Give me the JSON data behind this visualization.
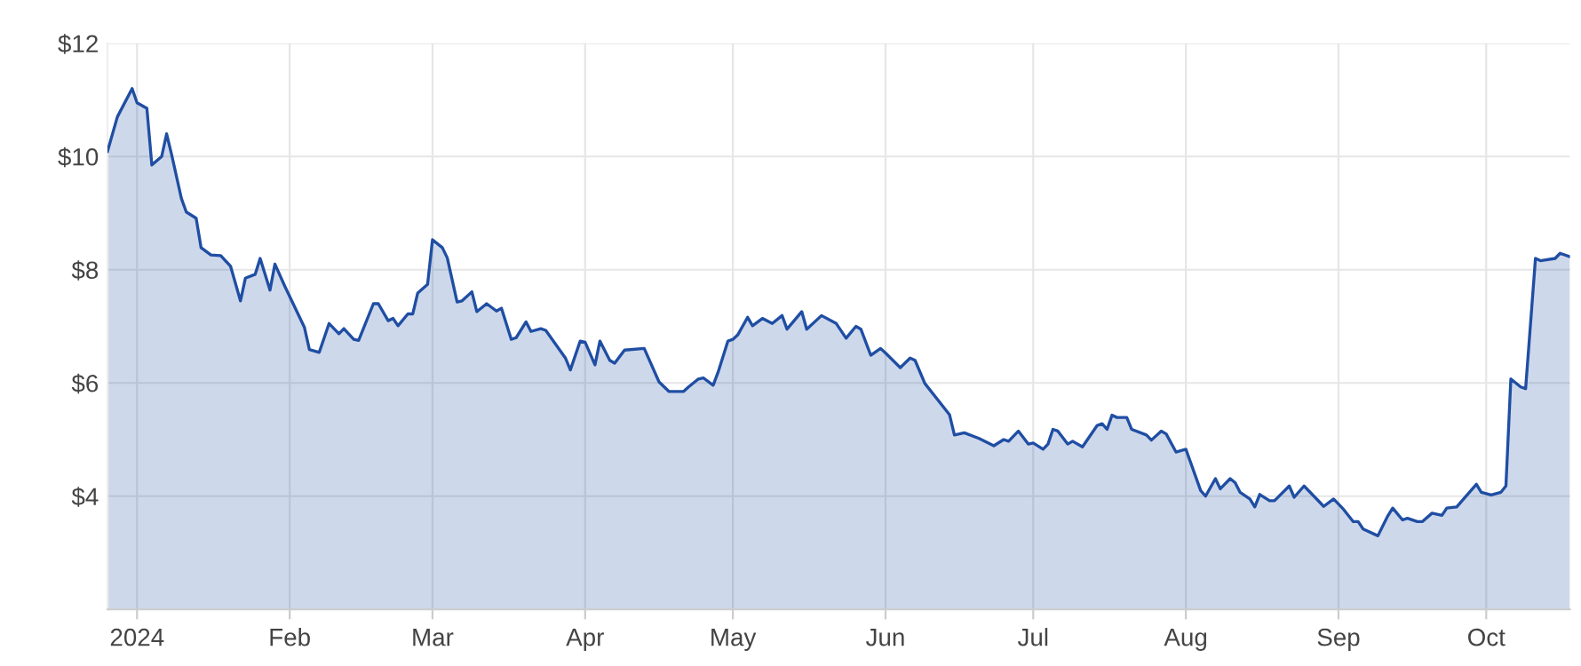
{
  "chart_data": {
    "type": "area",
    "x": [
      "2023-12-26",
      "2023-12-28",
      "2023-12-31",
      "2024-01-01",
      "2024-01-03",
      "2024-01-04",
      "2024-01-06",
      "2024-01-07",
      "2024-01-08",
      "2024-01-10",
      "2024-01-11",
      "2024-01-13",
      "2024-01-14",
      "2024-01-16",
      "2024-01-18",
      "2024-01-20",
      "2024-01-22",
      "2024-01-23",
      "2024-01-25",
      "2024-01-26",
      "2024-01-28",
      "2024-01-29",
      "2024-01-31",
      "2024-02-04",
      "2024-02-05",
      "2024-02-07",
      "2024-02-09",
      "2024-02-11",
      "2024-02-12",
      "2024-02-14",
      "2024-02-15",
      "2024-02-18",
      "2024-02-19",
      "2024-02-21",
      "2024-02-22",
      "2024-02-23",
      "2024-02-25",
      "2024-02-26",
      "2024-02-27",
      "2024-02-29",
      "2024-03-01",
      "2024-03-03",
      "2024-03-04",
      "2024-03-06",
      "2024-03-07",
      "2024-03-09",
      "2024-03-10",
      "2024-03-12",
      "2024-03-14",
      "2024-03-15",
      "2024-03-17",
      "2024-03-18",
      "2024-03-20",
      "2024-03-21",
      "2024-03-23",
      "2024-03-24",
      "2024-03-28",
      "2024-03-29",
      "2024-03-31",
      "2024-04-01",
      "2024-04-03",
      "2024-04-04",
      "2024-04-06",
      "2024-04-07",
      "2024-04-09",
      "2024-04-13",
      "2024-04-16",
      "2024-04-18",
      "2024-04-21",
      "2024-04-22",
      "2024-04-24",
      "2024-04-25",
      "2024-04-27",
      "2024-04-28",
      "2024-04-30",
      "2024-05-01",
      "2024-05-02",
      "2024-05-04",
      "2024-05-05",
      "2024-05-07",
      "2024-05-09",
      "2024-05-11",
      "2024-05-12",
      "2024-05-15",
      "2024-05-16",
      "2024-05-19",
      "2024-05-22",
      "2024-05-24",
      "2024-05-26",
      "2024-05-27",
      "2024-05-29",
      "2024-05-31",
      "2024-06-01",
      "2024-06-04",
      "2024-06-06",
      "2024-06-07",
      "2024-06-09",
      "2024-06-14",
      "2024-06-15",
      "2024-06-17",
      "2024-06-20",
      "2024-06-23",
      "2024-06-25",
      "2024-06-26",
      "2024-06-28",
      "2024-06-30",
      "2024-07-01",
      "2024-07-03",
      "2024-07-04",
      "2024-07-05",
      "2024-07-06",
      "2024-07-08",
      "2024-07-09",
      "2024-07-11",
      "2024-07-14",
      "2024-07-15",
      "2024-07-16",
      "2024-07-17",
      "2024-07-18",
      "2024-07-20",
      "2024-07-21",
      "2024-07-24",
      "2024-07-25",
      "2024-07-27",
      "2024-07-28",
      "2024-07-30",
      "2024-08-01",
      "2024-08-04",
      "2024-08-05",
      "2024-08-07",
      "2024-08-08",
      "2024-08-10",
      "2024-08-11",
      "2024-08-12",
      "2024-08-14",
      "2024-08-15",
      "2024-08-16",
      "2024-08-18",
      "2024-08-19",
      "2024-08-22",
      "2024-08-23",
      "2024-08-25",
      "2024-08-29",
      "2024-08-31",
      "2024-09-02",
      "2024-09-04",
      "2024-09-05",
      "2024-09-06",
      "2024-09-09",
      "2024-09-11",
      "2024-09-12",
      "2024-09-14",
      "2024-09-15",
      "2024-09-17",
      "2024-09-18",
      "2024-09-20",
      "2024-09-22",
      "2024-09-23",
      "2024-09-25",
      "2024-09-29",
      "2024-09-30",
      "2024-10-02",
      "2024-10-04",
      "2024-10-05",
      "2024-10-06",
      "2024-10-08",
      "2024-10-09",
      "2024-10-11",
      "2024-10-12",
      "2024-10-15",
      "2024-10-16",
      "2024-10-18"
    ],
    "series": [
      {
        "color": "#1f4ea3",
        "values": [
          10.09,
          10.7,
          11.2,
          10.95,
          10.85,
          9.85,
          10.0,
          10.4,
          10.04,
          9.26,
          9.02,
          8.91,
          8.39,
          8.26,
          8.25,
          8.06,
          7.45,
          7.85,
          7.92,
          8.2,
          7.64,
          8.1,
          7.71,
          6.98,
          6.59,
          6.54,
          7.05,
          6.87,
          6.96,
          6.77,
          6.75,
          7.4,
          7.4,
          7.1,
          7.14,
          7.01,
          7.22,
          7.22,
          7.59,
          7.74,
          8.53,
          8.39,
          8.21,
          7.43,
          7.45,
          7.61,
          7.26,
          7.4,
          7.27,
          7.32,
          6.77,
          6.8,
          7.08,
          6.91,
          6.96,
          6.93,
          6.44,
          6.23,
          6.74,
          6.72,
          6.32,
          6.74,
          6.4,
          6.35,
          6.58,
          6.61,
          6.02,
          5.85,
          5.85,
          5.93,
          6.07,
          6.09,
          5.96,
          6.19,
          6.74,
          6.77,
          6.85,
          7.16,
          7.01,
          7.14,
          7.05,
          7.19,
          6.95,
          7.26,
          6.95,
          7.19,
          7.05,
          6.79,
          7.0,
          6.95,
          6.49,
          6.61,
          6.53,
          6.27,
          6.44,
          6.4,
          5.99,
          5.44,
          5.08,
          5.12,
          5.02,
          4.89,
          5.0,
          4.97,
          5.15,
          4.92,
          4.94,
          4.83,
          4.92,
          5.18,
          5.15,
          4.92,
          4.97,
          4.87,
          5.25,
          5.28,
          5.18,
          5.43,
          5.39,
          5.39,
          5.18,
          5.08,
          4.99,
          5.15,
          5.1,
          4.78,
          4.83,
          4.1,
          4.0,
          4.31,
          4.13,
          4.31,
          4.24,
          4.07,
          3.95,
          3.81,
          4.03,
          3.92,
          3.92,
          4.18,
          3.98,
          4.18,
          3.82,
          3.95,
          3.77,
          3.55,
          3.55,
          3.42,
          3.3,
          3.65,
          3.79,
          3.58,
          3.61,
          3.55,
          3.55,
          3.7,
          3.66,
          3.79,
          3.81,
          4.21,
          4.07,
          4.02,
          4.07,
          4.18,
          6.07,
          5.93,
          5.9,
          8.2,
          8.16,
          8.2,
          8.29,
          8.23
        ]
      }
    ],
    "xlim": [
      "2023-12-26",
      "2024-10-18"
    ],
    "xticks": [
      {
        "value": "2024-01-01",
        "label": "2024"
      },
      {
        "value": "2024-02-01",
        "label": "Feb"
      },
      {
        "value": "2024-03-01",
        "label": "Mar"
      },
      {
        "value": "2024-04-01",
        "label": "Apr"
      },
      {
        "value": "2024-05-01",
        "label": "May"
      },
      {
        "value": "2024-06-01",
        "label": "Jun"
      },
      {
        "value": "2024-07-01",
        "label": "Jul"
      },
      {
        "value": "2024-08-01",
        "label": "Aug"
      },
      {
        "value": "2024-09-01",
        "label": "Sep"
      },
      {
        "value": "2024-10-01",
        "label": "Oct"
      }
    ],
    "ylim": [
      2,
      12
    ],
    "yticks": [
      {
        "value": 4,
        "label": "$4"
      },
      {
        "value": 6,
        "label": "$6"
      },
      {
        "value": 8,
        "label": "$8"
      },
      {
        "value": 10,
        "label": "$10"
      },
      {
        "value": 12,
        "label": "$12"
      }
    ],
    "grid": true,
    "legend": false,
    "marker": "none",
    "line_style": "solid"
  }
}
